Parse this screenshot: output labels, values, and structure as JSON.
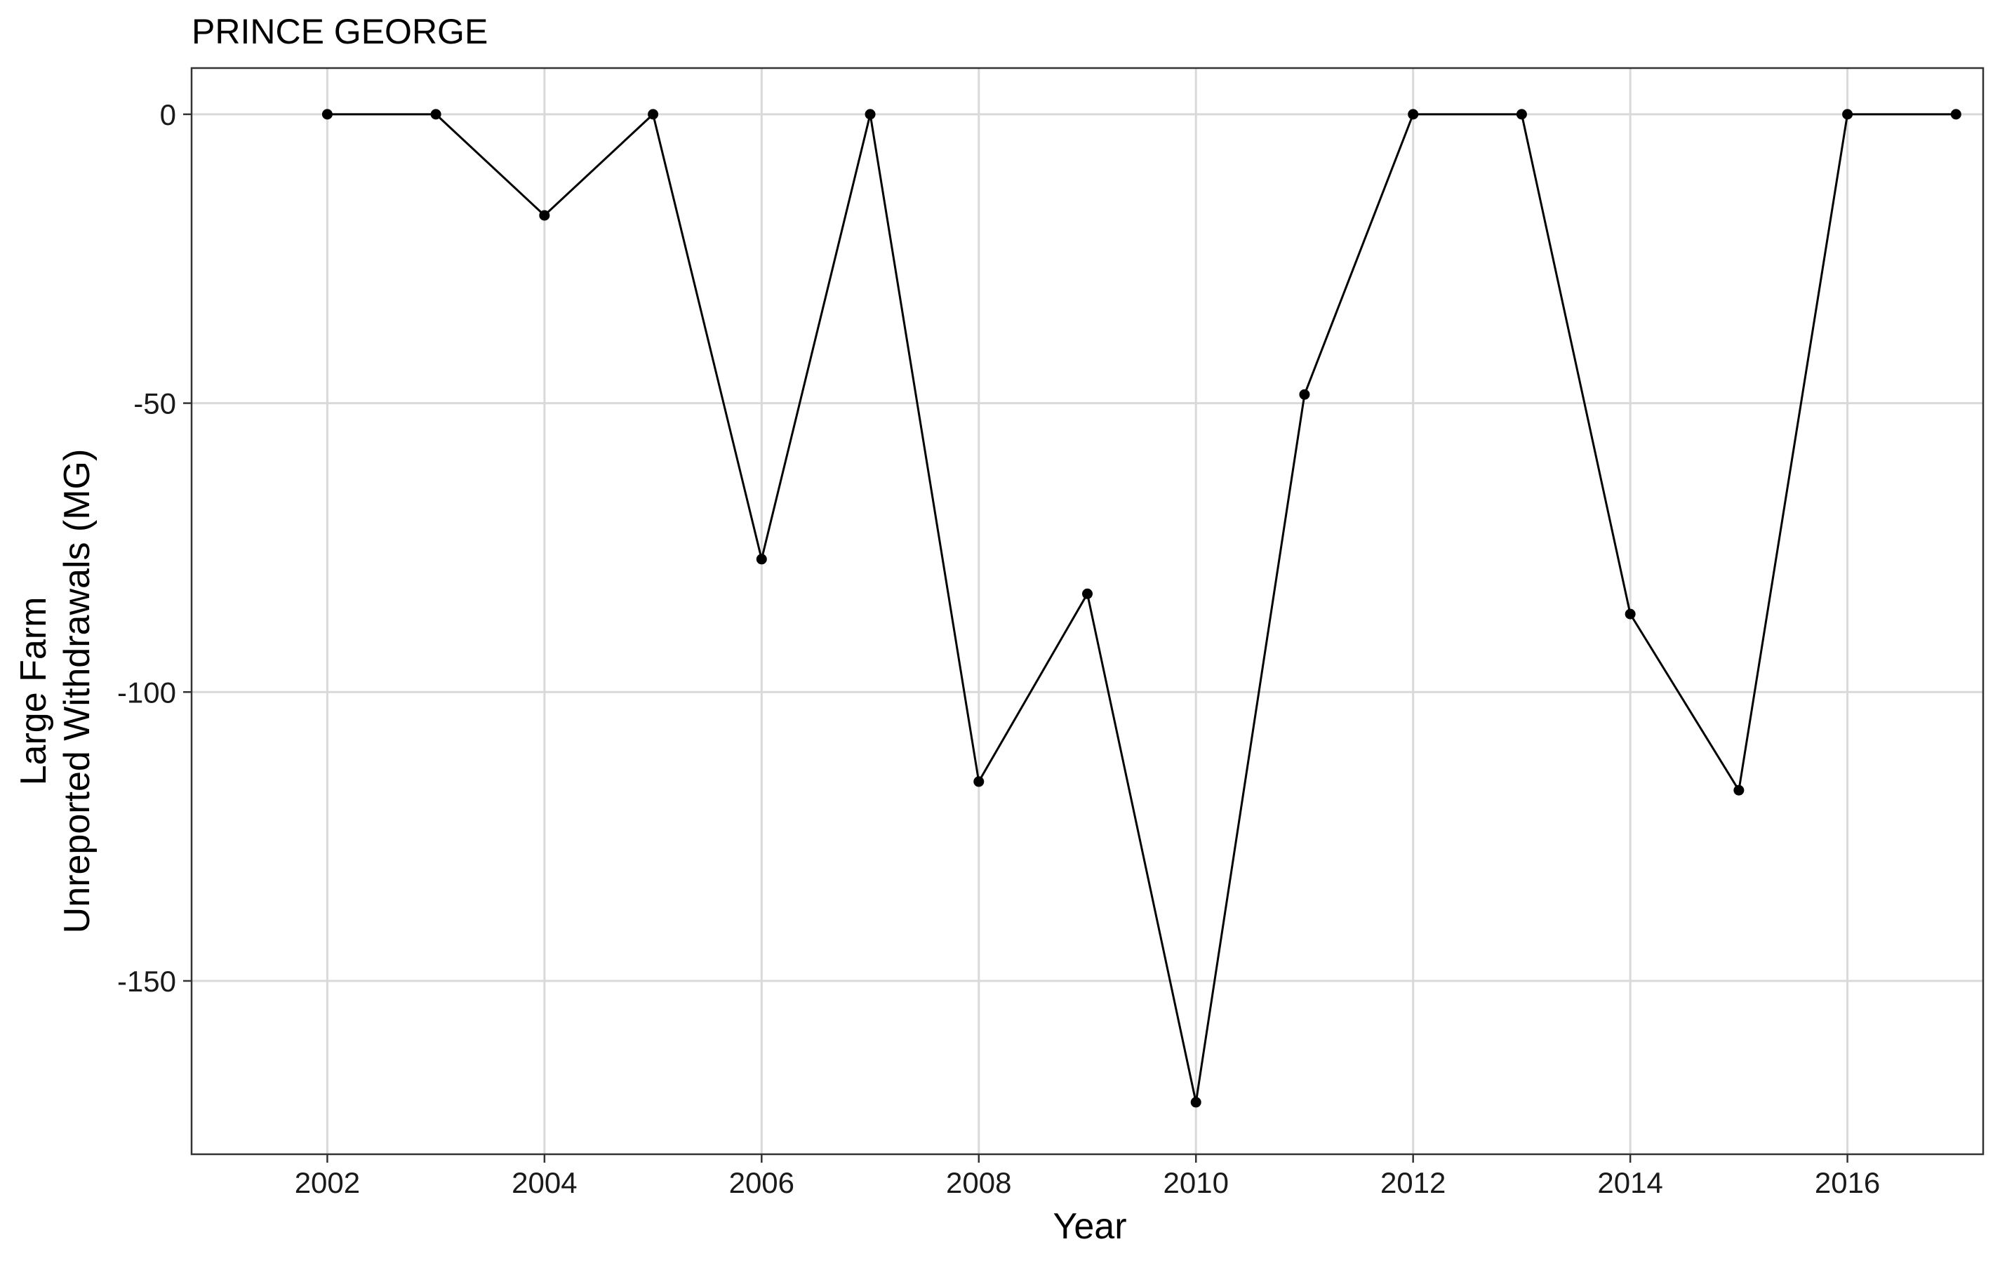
{
  "chart_data": {
    "type": "line",
    "title": "PRINCE GEORGE",
    "xlabel": "Year",
    "ylabel_lines": [
      "Large Farm",
      "Unreported Withdrawals (MG)"
    ],
    "x_ticks": [
      2002,
      2004,
      2006,
      2008,
      2010,
      2012,
      2014,
      2016
    ],
    "x_tick_labels": [
      "2002",
      "2004",
      "2006",
      "2008",
      "2010",
      "2012",
      "2014",
      "2016"
    ],
    "y_ticks": [
      0,
      -50,
      -100,
      -150
    ],
    "y_tick_labels": [
      "0",
      "-50",
      "-100",
      "-150"
    ],
    "xlim": [
      2000.75,
      2017.25
    ],
    "ylim": [
      -180,
      8
    ],
    "grid": true,
    "series": [
      {
        "x": [
          2002,
          2003,
          2004,
          2005,
          2006,
          2007,
          2008,
          2009,
          2010,
          2011,
          2012,
          2013,
          2014,
          2015,
          2016,
          2017
        ],
        "values": [
          0,
          0,
          -17.5,
          0,
          -77,
          0,
          -115.5,
          -83,
          -171,
          -48.5,
          0,
          0,
          -86.5,
          -117,
          0,
          0
        ]
      }
    ]
  }
}
